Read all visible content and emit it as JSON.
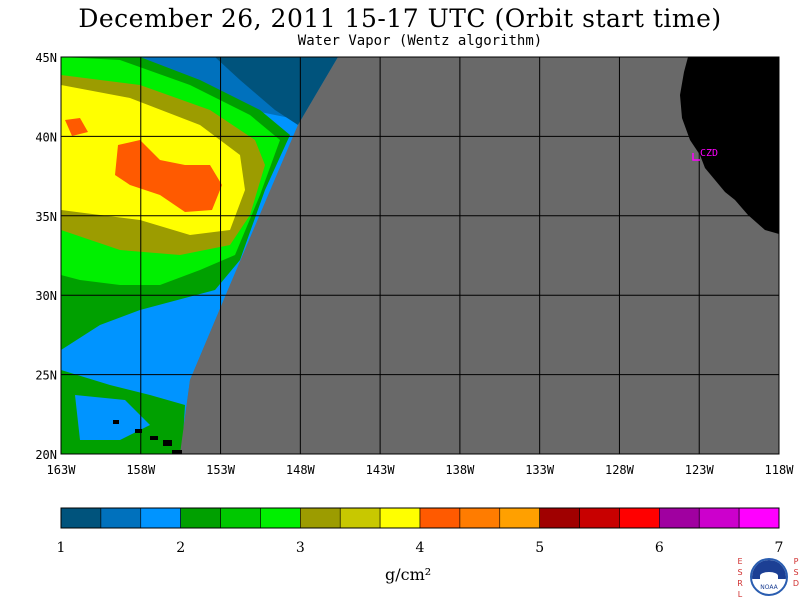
{
  "header": {
    "title": "December 26, 2011  15-17 UTC  (Orbit start time)",
    "subtitle": "Water Vapor (Wentz algorithm)"
  },
  "map": {
    "lat_labels": [
      "45N",
      "40N",
      "35N",
      "30N",
      "25N",
      "20N"
    ],
    "lon_labels": [
      "163W",
      "158W",
      "153W",
      "148W",
      "143W",
      "138W",
      "133W",
      "128W",
      "123W",
      "118W"
    ],
    "station_label": "CZD",
    "colors": {
      "no_data": "#696969",
      "land": "#000000",
      "station": "#ff00ff",
      "grid": "#000000"
    }
  },
  "colorbar": {
    "colors": [
      "#00537c",
      "#0071bd",
      "#0094ff",
      "#00a000",
      "#00c800",
      "#00f000",
      "#9c9c00",
      "#c8c800",
      "#ffff00",
      "#ff5a00",
      "#ff7c00",
      "#ffa000",
      "#a00000",
      "#c80000",
      "#ff0000",
      "#a000a0",
      "#cc00cc",
      "#ff00ff"
    ],
    "tick_labels": [
      "1",
      "2",
      "3",
      "4",
      "5",
      "6",
      "7"
    ],
    "unit": "g/cm²"
  },
  "logo": {
    "left_letters": [
      "E",
      "S",
      "R",
      "L"
    ],
    "right_letters": [
      "P",
      "S",
      "D"
    ],
    "seal_text": "NOAA"
  }
}
